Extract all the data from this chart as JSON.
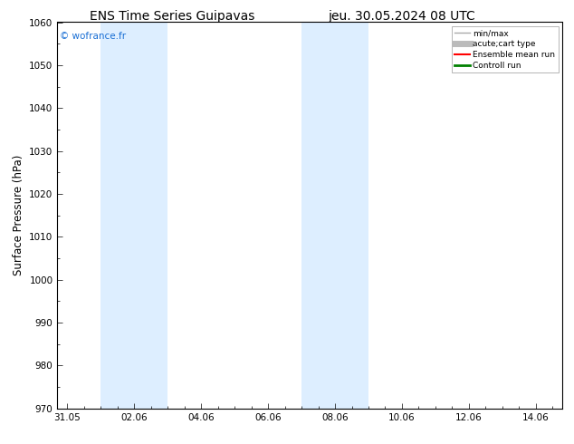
{
  "title_left": "ENS Time Series Guipavas",
  "title_right": "jeu. 30.05.2024 08 UTC",
  "ylabel": "Surface Pressure (hPa)",
  "ylim": [
    970,
    1060
  ],
  "yticks": [
    970,
    980,
    990,
    1000,
    1010,
    1020,
    1030,
    1040,
    1050,
    1060
  ],
  "xtick_labels": [
    "31.05",
    "02.06",
    "04.06",
    "06.06",
    "08.06",
    "10.06",
    "12.06",
    "14.06"
  ],
  "xtick_positions": [
    0,
    2,
    4,
    6,
    8,
    10,
    12,
    14
  ],
  "xlim": [
    -0.3,
    14.8
  ],
  "shaded_bands": [
    {
      "x_start": 1,
      "x_end": 3
    },
    {
      "x_start": 7,
      "x_end": 9
    }
  ],
  "shaded_color": "#ddeeff",
  "watermark": "© wofrance.fr",
  "watermark_color": "#1a6fd4",
  "legend_entries": [
    {
      "label": "min/max",
      "color": "#aaaaaa",
      "lw": 1.0
    },
    {
      "label": "acute;cart type",
      "color": "#bbbbbb",
      "lw": 5
    },
    {
      "label": "Ensemble mean run",
      "color": "#ff0000",
      "lw": 1.5
    },
    {
      "label": "Controll run",
      "color": "#008000",
      "lw": 2
    }
  ],
  "background_color": "#ffffff",
  "plot_bg_color": "#ffffff",
  "title_fontsize": 10,
  "tick_fontsize": 7.5,
  "ylabel_fontsize": 8.5
}
